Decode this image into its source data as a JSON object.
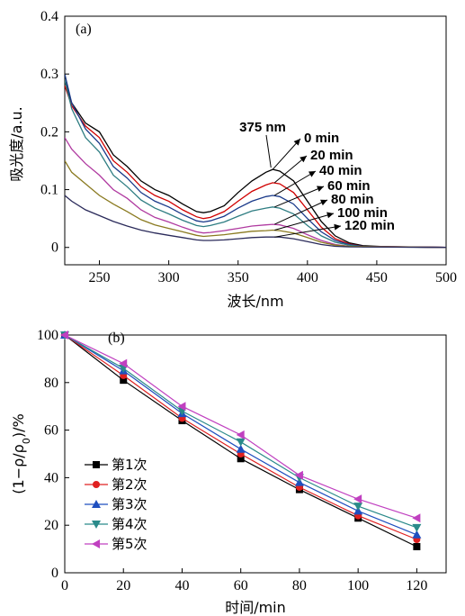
{
  "chart_data": [
    {
      "type": "line",
      "panel_label": "(a)",
      "xlabel": "波长/nm",
      "ylabel": "吸光度/a.u.",
      "xlim": [
        225,
        500
      ],
      "ylim": [
        -0.03,
        0.4
      ],
      "x_ticks": [
        "250",
        "300",
        "350",
        "400",
        "450",
        "500"
      ],
      "y_ticks": [
        "0",
        "0.1",
        "0.2",
        "0.3",
        "0.4"
      ],
      "peak_label": "375 nm",
      "series": [
        {
          "name": "0 min",
          "color": "#000000",
          "points": [
            [
              225,
              0.29
            ],
            [
              230,
              0.25
            ],
            [
              240,
              0.215
            ],
            [
              250,
              0.2
            ],
            [
              255,
              0.18
            ],
            [
              260,
              0.16
            ],
            [
              270,
              0.14
            ],
            [
              280,
              0.115
            ],
            [
              290,
              0.1
            ],
            [
              300,
              0.09
            ],
            [
              310,
              0.075
            ],
            [
              320,
              0.062
            ],
            [
              325,
              0.06
            ],
            [
              330,
              0.062
            ],
            [
              340,
              0.072
            ],
            [
              350,
              0.095
            ],
            [
              360,
              0.115
            ],
            [
              370,
              0.13
            ],
            [
              375,
              0.135
            ],
            [
              380,
              0.132
            ],
            [
              390,
              0.115
            ],
            [
              400,
              0.08
            ],
            [
              410,
              0.045
            ],
            [
              420,
              0.02
            ],
            [
              430,
              0.008
            ],
            [
              440,
              0.003
            ],
            [
              460,
              0.001
            ],
            [
              500,
              0.0
            ]
          ]
        },
        {
          "name": "20 min",
          "color": "#d00000",
          "points": [
            [
              225,
              0.28
            ],
            [
              230,
              0.245
            ],
            [
              240,
              0.21
            ],
            [
              250,
              0.19
            ],
            [
              260,
              0.15
            ],
            [
              270,
              0.13
            ],
            [
              280,
              0.105
            ],
            [
              290,
              0.09
            ],
            [
              300,
              0.08
            ],
            [
              310,
              0.065
            ],
            [
              320,
              0.053
            ],
            [
              325,
              0.05
            ],
            [
              330,
              0.052
            ],
            [
              340,
              0.062
            ],
            [
              350,
              0.08
            ],
            [
              360,
              0.097
            ],
            [
              370,
              0.108
            ],
            [
              375,
              0.112
            ],
            [
              380,
              0.11
            ],
            [
              390,
              0.095
            ],
            [
              400,
              0.065
            ],
            [
              410,
              0.035
            ],
            [
              420,
              0.015
            ],
            [
              430,
              0.006
            ],
            [
              440,
              0.002
            ],
            [
              500,
              0.0
            ]
          ]
        },
        {
          "name": "40 min",
          "color": "#1a3a8a",
          "points": [
            [
              225,
              0.3
            ],
            [
              230,
              0.25
            ],
            [
              240,
              0.205
            ],
            [
              250,
              0.18
            ],
            [
              260,
              0.14
            ],
            [
              270,
              0.12
            ],
            [
              280,
              0.095
            ],
            [
              290,
              0.08
            ],
            [
              300,
              0.07
            ],
            [
              310,
              0.057
            ],
            [
              320,
              0.046
            ],
            [
              325,
              0.044
            ],
            [
              330,
              0.046
            ],
            [
              340,
              0.054
            ],
            [
              350,
              0.068
            ],
            [
              360,
              0.08
            ],
            [
              370,
              0.088
            ],
            [
              375,
              0.09
            ],
            [
              380,
              0.088
            ],
            [
              390,
              0.075
            ],
            [
              400,
              0.05
            ],
            [
              410,
              0.027
            ],
            [
              420,
              0.012
            ],
            [
              430,
              0.005
            ],
            [
              440,
              0.002
            ],
            [
              500,
              0.0
            ]
          ]
        },
        {
          "name": "60 min",
          "color": "#2e7d82",
          "points": [
            [
              225,
              0.29
            ],
            [
              230,
              0.24
            ],
            [
              240,
              0.19
            ],
            [
              250,
              0.165
            ],
            [
              260,
              0.125
            ],
            [
              270,
              0.105
            ],
            [
              280,
              0.082
            ],
            [
              290,
              0.068
            ],
            [
              300,
              0.058
            ],
            [
              310,
              0.047
            ],
            [
              320,
              0.038
            ],
            [
              325,
              0.036
            ],
            [
              330,
              0.038
            ],
            [
              340,
              0.044
            ],
            [
              350,
              0.054
            ],
            [
              360,
              0.063
            ],
            [
              370,
              0.068
            ],
            [
              375,
              0.07
            ],
            [
              380,
              0.068
            ],
            [
              390,
              0.058
            ],
            [
              400,
              0.038
            ],
            [
              410,
              0.02
            ],
            [
              420,
              0.009
            ],
            [
              430,
              0.004
            ],
            [
              440,
              0.001
            ],
            [
              500,
              0.0
            ]
          ]
        },
        {
          "name": "80 min",
          "color": "#b03aa0",
          "points": [
            [
              225,
              0.19
            ],
            [
              230,
              0.17
            ],
            [
              240,
              0.145
            ],
            [
              250,
              0.125
            ],
            [
              260,
              0.1
            ],
            [
              270,
              0.085
            ],
            [
              280,
              0.065
            ],
            [
              290,
              0.052
            ],
            [
              300,
              0.044
            ],
            [
              310,
              0.035
            ],
            [
              320,
              0.027
            ],
            [
              325,
              0.025
            ],
            [
              330,
              0.026
            ],
            [
              340,
              0.029
            ],
            [
              350,
              0.033
            ],
            [
              360,
              0.037
            ],
            [
              370,
              0.039
            ],
            [
              375,
              0.04
            ],
            [
              380,
              0.039
            ],
            [
              390,
              0.033
            ],
            [
              400,
              0.022
            ],
            [
              410,
              0.012
            ],
            [
              420,
              0.005
            ],
            [
              430,
              0.002
            ],
            [
              500,
              0.0
            ]
          ]
        },
        {
          "name": "100 min",
          "color": "#8a7a20",
          "points": [
            [
              225,
              0.15
            ],
            [
              230,
              0.13
            ],
            [
              240,
              0.11
            ],
            [
              250,
              0.09
            ],
            [
              260,
              0.075
            ],
            [
              270,
              0.062
            ],
            [
              280,
              0.048
            ],
            [
              290,
              0.039
            ],
            [
              300,
              0.033
            ],
            [
              310,
              0.027
            ],
            [
              320,
              0.021
            ],
            [
              325,
              0.019
            ],
            [
              330,
              0.02
            ],
            [
              340,
              0.022
            ],
            [
              350,
              0.025
            ],
            [
              360,
              0.028
            ],
            [
              370,
              0.029
            ],
            [
              375,
              0.03
            ],
            [
              380,
              0.029
            ],
            [
              390,
              0.025
            ],
            [
              400,
              0.017
            ],
            [
              410,
              0.009
            ],
            [
              420,
              0.004
            ],
            [
              430,
              0.002
            ],
            [
              500,
              0.0
            ]
          ]
        },
        {
          "name": "120 min",
          "color": "#2a2a5a",
          "points": [
            [
              225,
              0.09
            ],
            [
              230,
              0.08
            ],
            [
              240,
              0.065
            ],
            [
              250,
              0.055
            ],
            [
              260,
              0.045
            ],
            [
              270,
              0.037
            ],
            [
              280,
              0.03
            ],
            [
              290,
              0.025
            ],
            [
              300,
              0.021
            ],
            [
              310,
              0.017
            ],
            [
              320,
              0.013
            ],
            [
              325,
              0.012
            ],
            [
              330,
              0.012
            ],
            [
              340,
              0.013
            ],
            [
              350,
              0.015
            ],
            [
              360,
              0.017
            ],
            [
              370,
              0.018
            ],
            [
              375,
              0.018
            ],
            [
              380,
              0.018
            ],
            [
              390,
              0.015
            ],
            [
              400,
              0.01
            ],
            [
              410,
              0.005
            ],
            [
              420,
              0.002
            ],
            [
              430,
              0.001
            ],
            [
              500,
              0.0
            ]
          ]
        }
      ]
    },
    {
      "type": "line",
      "panel_label": "(b)",
      "xlabel": "时间/min",
      "ylabel": "(1−ρ/ρ0)/%",
      "xlim": [
        0,
        130
      ],
      "ylim": [
        0,
        100
      ],
      "x_ticks": [
        "0",
        "20",
        "40",
        "60",
        "80",
        "100",
        "120"
      ],
      "y_ticks": [
        "0",
        "20",
        "40",
        "60",
        "80",
        "100"
      ],
      "x": [
        0,
        20,
        40,
        60,
        80,
        100,
        120
      ],
      "series": [
        {
          "name": "第1次",
          "color": "#000000",
          "marker": "square",
          "values": [
            100,
            81,
            64,
            48,
            35,
            23,
            11
          ]
        },
        {
          "name": "第2次",
          "color": "#e02020",
          "marker": "circle",
          "values": [
            100,
            83,
            65,
            50,
            36,
            24,
            14
          ]
        },
        {
          "name": "第3次",
          "color": "#1f4fbf",
          "marker": "triangle-up",
          "values": [
            100,
            85,
            67,
            52,
            38,
            26,
            16
          ]
        },
        {
          "name": "第4次",
          "color": "#2a8a8a",
          "marker": "triangle-down",
          "values": [
            100,
            86,
            68,
            55,
            40,
            28,
            19
          ]
        },
        {
          "name": "第5次",
          "color": "#c040c0",
          "marker": "triangle-left",
          "values": [
            100,
            88,
            70,
            58,
            41,
            31,
            23
          ]
        }
      ]
    }
  ]
}
